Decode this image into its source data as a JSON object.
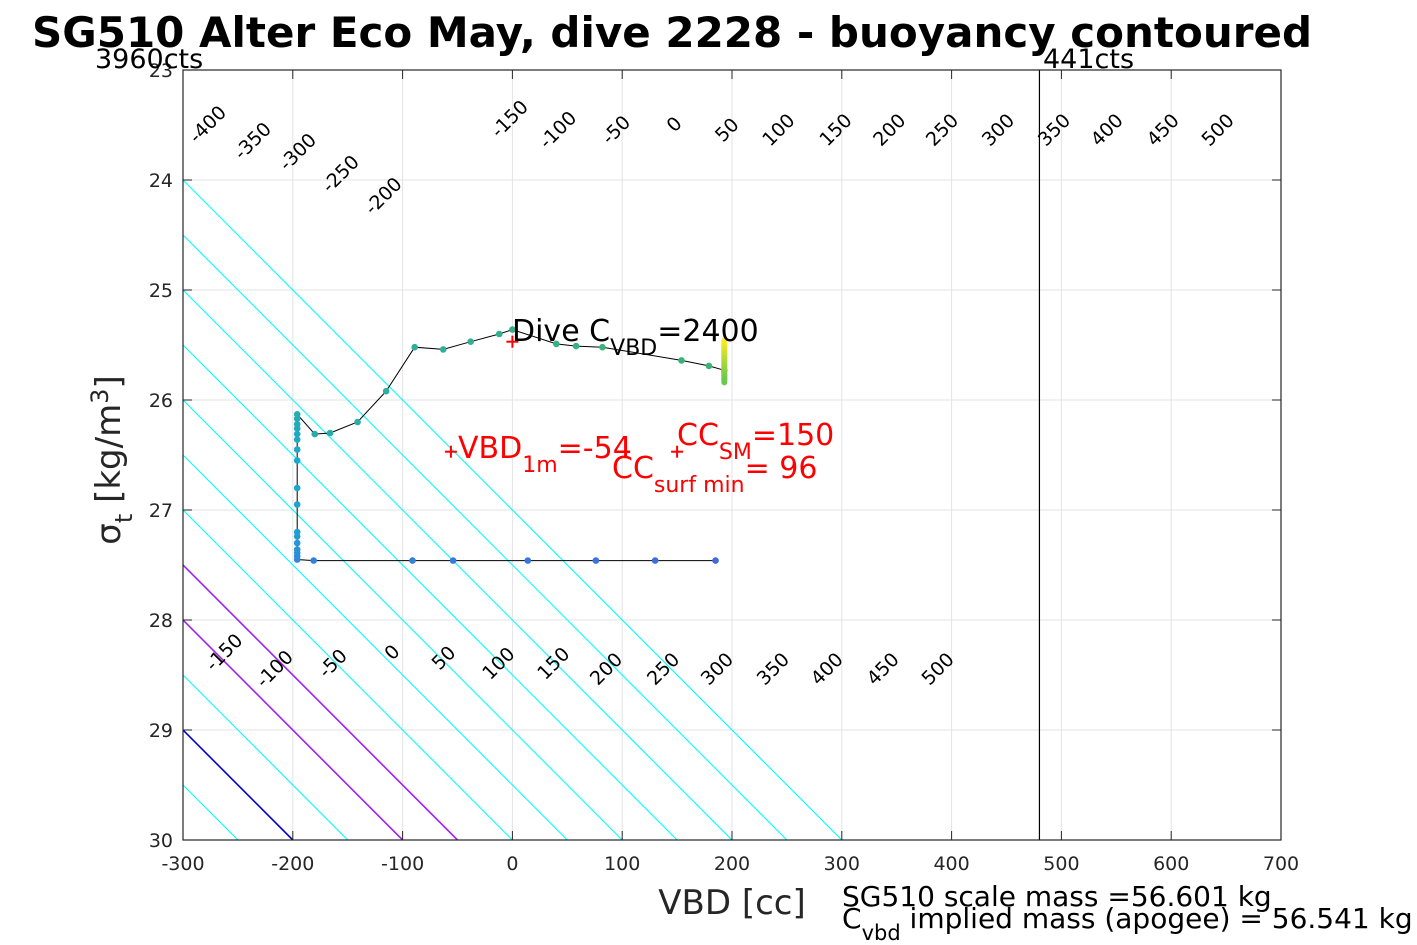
{
  "chart_data": {
    "type": "contour",
    "title": "SG510 Alter Eco May, dive 2228 - buoyancy contoured",
    "xlabel": "VBD [cc]",
    "ylabel": {
      "main": "σ",
      "sub": "t",
      "unit": " [kg/m",
      "sup": "3",
      "close": "]"
    },
    "xlim": [
      -300,
      700
    ],
    "ylim": [
      23,
      30
    ],
    "y_reversed": true,
    "grid": true,
    "x_ticks": [
      -300,
      -200,
      -100,
      0,
      100,
      200,
      300,
      400,
      500,
      600,
      700
    ],
    "x_tick_labels": [
      "-300",
      "-200",
      "-100",
      "0",
      "100",
      "200",
      "300",
      "400",
      "500",
      "600",
      "700"
    ],
    "y_ticks": [
      23,
      24,
      25,
      26,
      27,
      28,
      29,
      30
    ],
    "y_tick_labels": [
      "23",
      "24",
      "25",
      "26",
      "27",
      "28",
      "29",
      "30"
    ],
    "contour_slope_cc_per_sigma": 100,
    "contour_levels": [
      -550,
      -500,
      -450,
      -400,
      -350,
      -300,
      -250,
      -200,
      -150,
      -100,
      -50,
      0,
      50,
      100,
      150,
      200,
      250,
      300,
      350,
      400,
      450,
      500
    ],
    "contour_zero_offset_cc": -200,
    "highlight_contours": [
      {
        "level": 0,
        "color": "#0000cc"
      },
      {
        "level": 100,
        "color": "#a020f0"
      },
      {
        "level": 150,
        "color": "#a020f0"
      }
    ],
    "contour_labels_top": [
      {
        "text": "-400",
        "x": -277,
        "y": 23.5
      },
      {
        "text": "-350",
        "x": -236,
        "y": 23.65
      },
      {
        "text": "-300",
        "x": -195,
        "y": 23.75
      },
      {
        "text": "-250",
        "x": -156,
        "y": 23.95
      },
      {
        "text": "-200",
        "x": -117,
        "y": 24.15
      },
      {
        "text": "-150",
        "x": -2,
        "y": 23.45
      },
      {
        "text": "-100",
        "x": 42,
        "y": 23.55
      },
      {
        "text": "-50",
        "x": 95,
        "y": 23.55
      },
      {
        "text": "0",
        "x": 148,
        "y": 23.5
      },
      {
        "text": "50",
        "x": 196,
        "y": 23.55
      },
      {
        "text": "100",
        "x": 243,
        "y": 23.55
      },
      {
        "text": "150",
        "x": 295,
        "y": 23.55
      },
      {
        "text": "200",
        "x": 344,
        "y": 23.55
      },
      {
        "text": "250",
        "x": 392,
        "y": 23.55
      },
      {
        "text": "300",
        "x": 443,
        "y": 23.55
      },
      {
        "text": "350",
        "x": 494,
        "y": 23.55
      },
      {
        "text": "400",
        "x": 542,
        "y": 23.55
      },
      {
        "text": "450",
        "x": 593,
        "y": 23.55
      },
      {
        "text": "500",
        "x": 643,
        "y": 23.55
      }
    ],
    "contour_labels_bottom": [
      {
        "text": "-150",
        "x": -262,
        "y": 28.3
      },
      {
        "text": "-100",
        "x": -216,
        "y": 28.45
      },
      {
        "text": "-50",
        "x": -163,
        "y": 28.4
      },
      {
        "text": "0",
        "x": -109,
        "y": 28.3
      },
      {
        "text": "50",
        "x": -62,
        "y": 28.35
      },
      {
        "text": "100",
        "x": -12,
        "y": 28.4
      },
      {
        "text": "150",
        "x": 38,
        "y": 28.4
      },
      {
        "text": "200",
        "x": 86,
        "y": 28.45
      },
      {
        "text": "250",
        "x": 138,
        "y": 28.45
      },
      {
        "text": "300",
        "x": 187,
        "y": 28.45
      },
      {
        "text": "350",
        "x": 238,
        "y": 28.45
      },
      {
        "text": "400",
        "x": 287,
        "y": 28.45
      },
      {
        "text": "450",
        "x": 338,
        "y": 28.45
      },
      {
        "text": "500",
        "x": 388,
        "y": 28.45
      }
    ],
    "vertical_limit_line": {
      "x": 480
    },
    "series": [
      {
        "points": [
          [
            185,
            27.46
          ],
          [
            130,
            27.46
          ],
          [
            76,
            27.46
          ],
          [
            14,
            27.46
          ],
          [
            -54,
            27.46
          ],
          [
            -91,
            27.46
          ],
          [
            -181,
            27.46
          ],
          [
            -196,
            27.45
          ],
          [
            -196,
            27.42
          ],
          [
            -196,
            27.39
          ],
          [
            -196,
            27.36
          ],
          [
            -196,
            27.3
          ],
          [
            -196,
            27.24
          ],
          [
            -196,
            27.2
          ],
          [
            -196,
            26.95
          ],
          [
            -196,
            26.8
          ],
          [
            -196,
            26.55
          ],
          [
            -196,
            26.45
          ],
          [
            -196,
            26.36
          ],
          [
            -196,
            26.31
          ],
          [
            -196,
            26.26
          ],
          [
            -196,
            26.22
          ],
          [
            -196,
            26.17
          ],
          [
            -196,
            26.13
          ],
          [
            -180,
            26.31
          ],
          [
            -166,
            26.3
          ],
          [
            -141,
            26.2
          ],
          [
            -115,
            25.92
          ],
          [
            -89,
            25.52
          ],
          [
            -63,
            25.54
          ],
          [
            -38,
            25.47
          ],
          [
            -12,
            25.4
          ],
          [
            0,
            25.36
          ],
          [
            40,
            25.49
          ],
          [
            58,
            25.51
          ],
          [
            82,
            25.52
          ],
          [
            154,
            25.64
          ],
          [
            179,
            25.69
          ],
          [
            193,
            25.73
          ]
        ],
        "color_start": "#4169e1",
        "color_mid": "#1aa8d2",
        "color_end": "#3cb371"
      }
    ],
    "vertical_bar": {
      "x": 193,
      "y_from": 25.46,
      "y_to": 25.84
    },
    "markers": [
      {
        "x": 0,
        "y": 25.47,
        "symbol": "+"
      },
      {
        "x": -56,
        "y": 26.47,
        "symbol": "+"
      },
      {
        "x": 150,
        "y": 26.47,
        "symbol": "+"
      }
    ],
    "annotations": {
      "dive_cvbd": {
        "pre": "Dive C",
        "sub": "VBD",
        "post": "=2400"
      },
      "vbd_1m": {
        "pre": "VBD",
        "sub": "1m",
        "post": "=-54"
      },
      "cc_sm": {
        "pre": "CC",
        "sub": "SM",
        "post": "=150"
      },
      "cc_surf": {
        "pre": "CC",
        "sub": "surf min",
        "post": "= 96"
      },
      "left_cts": "3960cts",
      "right_cts": "441cts"
    },
    "footer": {
      "line1": "SG510 scale mass =56.601 kg",
      "line2_pre": "C",
      "line2_sub": "vbd",
      "line2_post": " implied mass (apogee) = 56.541 kg"
    }
  }
}
